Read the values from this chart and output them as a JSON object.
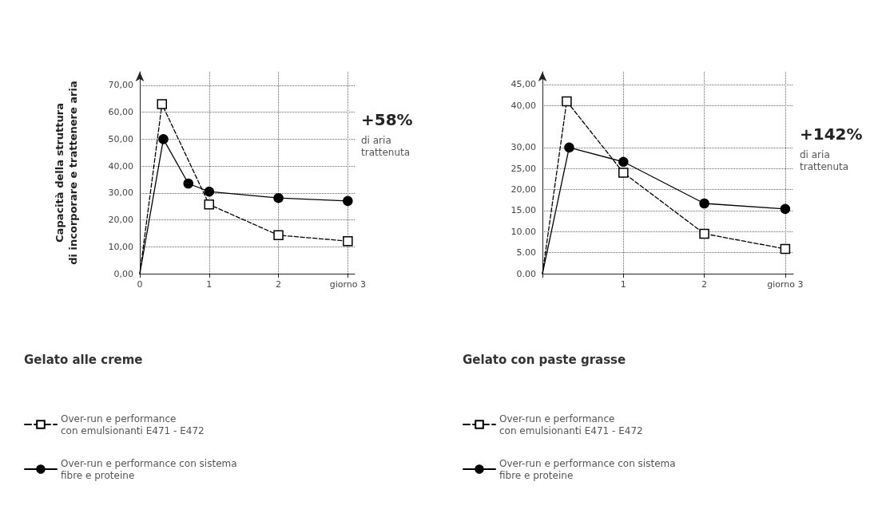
{
  "chart_data": [
    {
      "type": "line",
      "title": "Gelato alle creme",
      "ylabel": "Capacità della struttura\ndi incorporare e trattenere aria",
      "annotations": [
        "+58%",
        "di aria\ntrattenuta"
      ],
      "xlim": [
        0,
        3.1
      ],
      "xticks": [
        {
          "value": 0,
          "label": "0"
        },
        {
          "value": 1,
          "label": "1"
        },
        {
          "value": 2,
          "label": "2"
        },
        {
          "value": 3,
          "label": "giorno 3"
        }
      ],
      "ylim": [
        0,
        75
      ],
      "yticks": [
        {
          "value": 0,
          "label": "0,00"
        },
        {
          "value": 10,
          "label": "10,00"
        },
        {
          "value": 20,
          "label": "20,00"
        },
        {
          "value": 30,
          "label": "30,00"
        },
        {
          "value": 40,
          "label": "40,00"
        },
        {
          "value": 50,
          "label": "50,00"
        },
        {
          "value": 60,
          "label": "60,00"
        },
        {
          "value": 70,
          "label": "70,00"
        }
      ],
      "grid": true,
      "legend": "bottom",
      "series": [
        {
          "name": "Over-run e performance\ncon emulsionanti E471 - E472",
          "color": "#000000",
          "line_style": "dashed",
          "marker": "square",
          "x": [
            0,
            0.32,
            1,
            2,
            3
          ],
          "values": [
            0,
            63,
            25.7,
            14.3,
            12.1
          ]
        },
        {
          "name": "Over-run e performance con sistema\nfibre e proteine",
          "color": "#000000",
          "line_style": "solid",
          "marker": "circle",
          "x": [
            0,
            0.34,
            0.7,
            1,
            2,
            3
          ],
          "values": [
            0,
            50,
            33.5,
            30.5,
            28.1,
            27
          ]
        }
      ]
    },
    {
      "type": "line",
      "title": "Gelato con paste grasse",
      "annotations": [
        "+142%",
        "di aria\ntrattenuta"
      ],
      "xlim": [
        0,
        3.1
      ],
      "xticks": [
        {
          "value": 0,
          "label": null
        },
        {
          "value": 1,
          "label": "1"
        },
        {
          "value": 2,
          "label": "2"
        },
        {
          "value": 3,
          "label": "giorno 3"
        }
      ],
      "ylim": [
        0,
        48
      ],
      "yticks": [
        {
          "value": 0,
          "label": "0.00"
        },
        {
          "value": 5,
          "label": "5.00"
        },
        {
          "value": 10,
          "label": "10.00"
        },
        {
          "value": 15,
          "label": "15.00"
        },
        {
          "value": 20,
          "label": "20,00"
        },
        {
          "value": 25,
          "label": "25,00"
        },
        {
          "value": 30,
          "label": "30,00"
        },
        {
          "value": 40,
          "label": "40,00"
        },
        {
          "value": 45,
          "label": "45,00"
        }
      ],
      "grid": true,
      "legend": "bottom",
      "series": [
        {
          "name": "Over-run e performance\ncon emulsionanti E471 - E472",
          "color": "#000000",
          "line_style": "dashed",
          "marker": "square",
          "x": [
            0,
            0.3,
            1,
            2,
            3
          ],
          "values": [
            0,
            41,
            24,
            9.5,
            5.9
          ]
        },
        {
          "name": "Over-run e performance con sistema\nfibre e proteine",
          "color": "#000000",
          "line_style": "solid",
          "marker": "circle",
          "x": [
            0,
            0.33,
            1,
            2,
            3
          ],
          "values": [
            0,
            30,
            26.6,
            16.7,
            15.4
          ]
        }
      ]
    }
  ]
}
